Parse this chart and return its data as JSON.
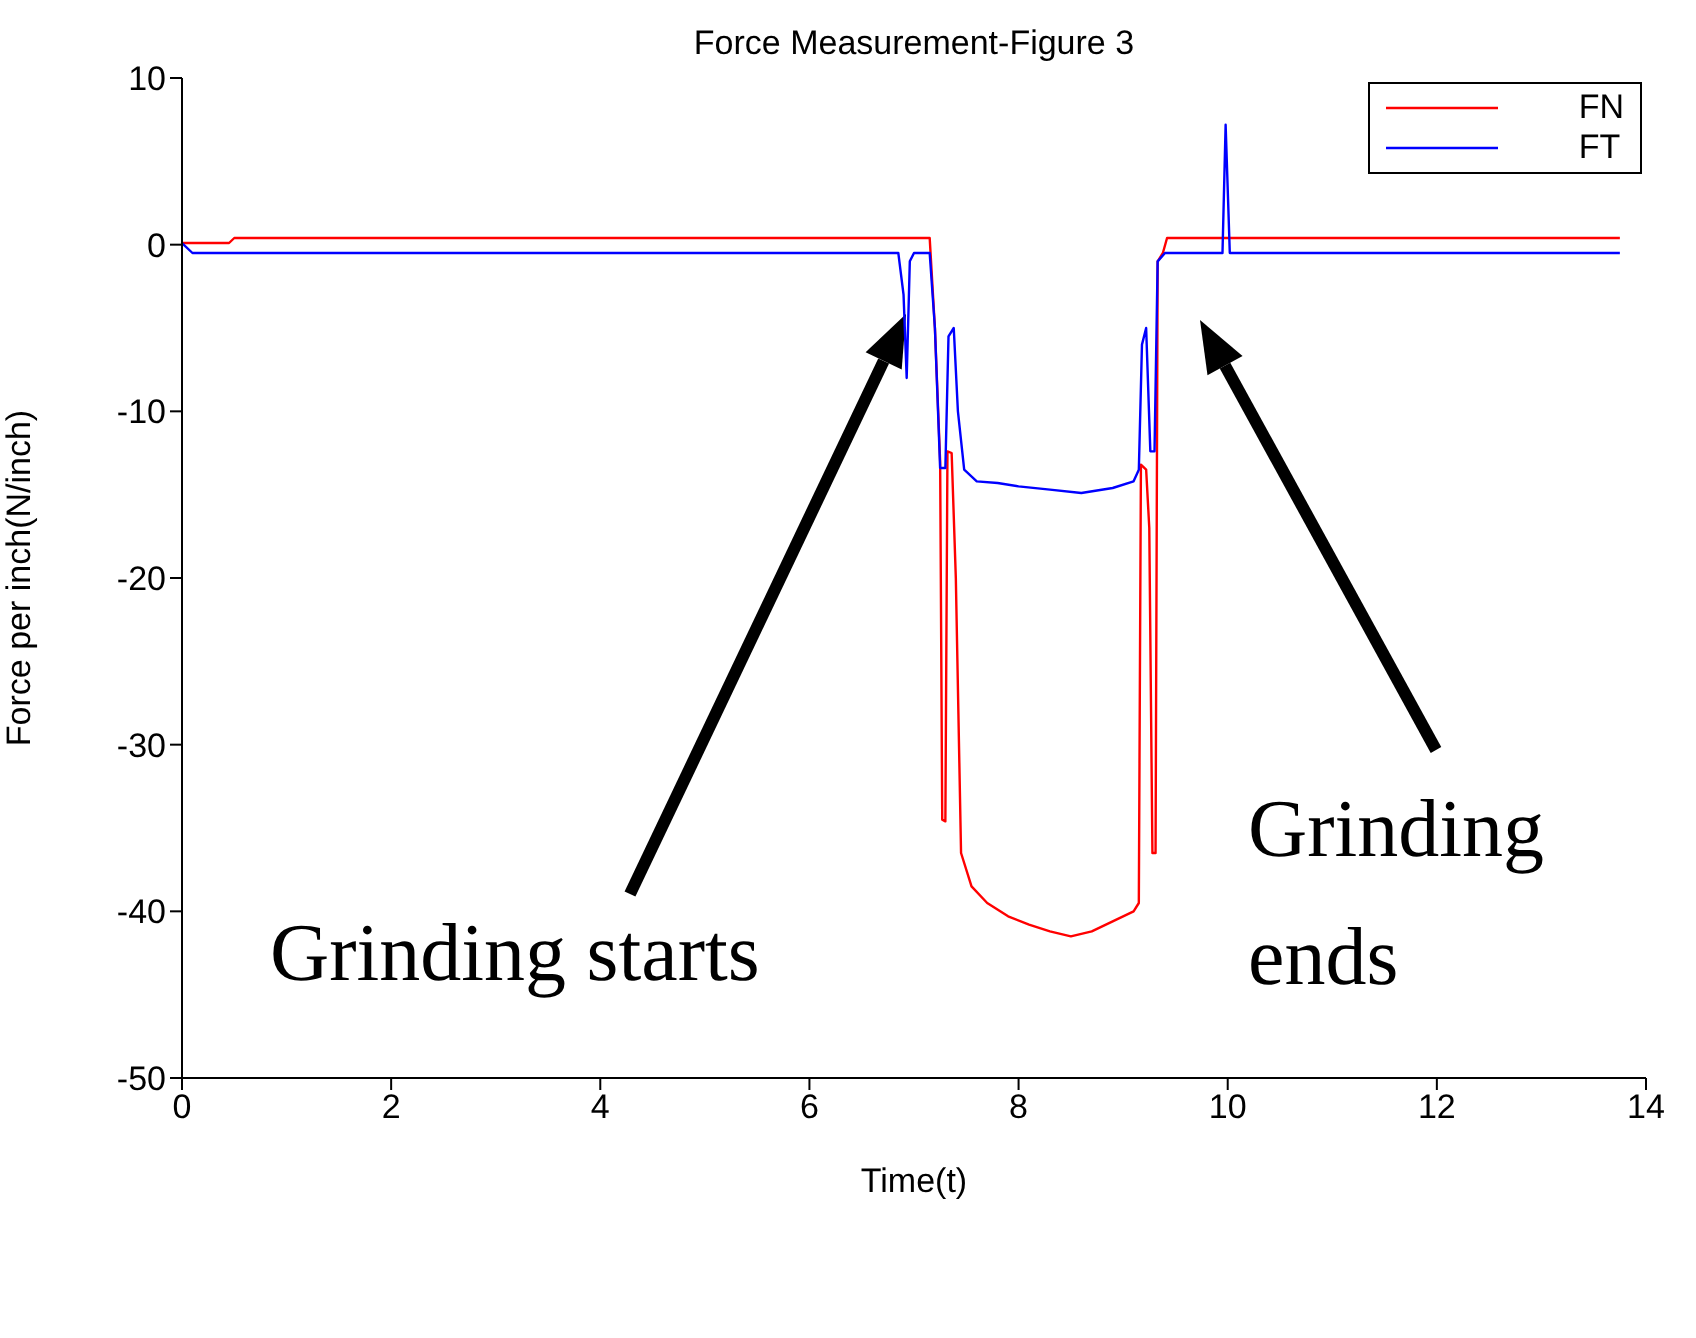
{
  "chart_data": {
    "type": "line",
    "title": "Force Measurement-Figure 3",
    "xlabel": "Time(t)",
    "ylabel": "Force per inch(N/inch)",
    "xlim": [
      0,
      14
    ],
    "xticks": [
      0,
      2,
      4,
      6,
      8,
      10,
      12,
      14
    ],
    "ylim": [
      -50,
      10
    ],
    "yticks": [
      -50,
      -40,
      -30,
      -20,
      -10,
      0,
      10
    ],
    "grid": false,
    "legend": "top right",
    "marker": "none",
    "line_style": "solid",
    "series": [
      {
        "name": "FN",
        "color": "#ff0000",
        "x": [
          0,
          0.45,
          0.5,
          7.15,
          7.2,
          7.25,
          7.27,
          7.3,
          7.32,
          7.36,
          7.4,
          7.45,
          7.55,
          7.7,
          7.9,
          8.1,
          8.3,
          8.5,
          8.7,
          8.9,
          9.1,
          9.15,
          9.17,
          9.22,
          9.25,
          9.28,
          9.31,
          9.33,
          9.38,
          9.42,
          13.75
        ],
        "values": [
          0.1,
          0.1,
          0.4,
          0.4,
          -5,
          -13,
          -34.5,
          -34.6,
          -12.4,
          -12.5,
          -20,
          -36.5,
          -38.5,
          -39.5,
          -40.3,
          -40.8,
          -41.2,
          -41.5,
          -41.2,
          -40.6,
          -40,
          -39.5,
          -13.2,
          -13.5,
          -17,
          -36.5,
          -36.5,
          -1,
          -0.5,
          0.4,
          0.4
        ]
      },
      {
        "name": "FT",
        "color": "#0000ff",
        "x": [
          0,
          0.1,
          6.85,
          6.9,
          6.93,
          6.96,
          7.0,
          7.15,
          7.2,
          7.25,
          7.3,
          7.33,
          7.38,
          7.42,
          7.48,
          7.6,
          7.8,
          8.0,
          8.3,
          8.6,
          8.9,
          9.1,
          9.15,
          9.18,
          9.22,
          9.26,
          9.3,
          9.33,
          9.4,
          9.95,
          9.98,
          10.02,
          13.75
        ],
        "values": [
          0.1,
          -0.5,
          -0.5,
          -3,
          -8,
          -1,
          -0.5,
          -0.5,
          -5,
          -13.4,
          -13.4,
          -5.5,
          -5,
          -10,
          -13.5,
          -14.2,
          -14.3,
          -14.5,
          -14.7,
          -14.9,
          -14.6,
          -14.2,
          -13.5,
          -6,
          -5,
          -12.4,
          -12.4,
          -1,
          -0.5,
          -0.5,
          7.2,
          -0.5,
          -0.5
        ]
      }
    ],
    "annotations": [
      "Grinding starts",
      "Grinding ends"
    ]
  }
}
